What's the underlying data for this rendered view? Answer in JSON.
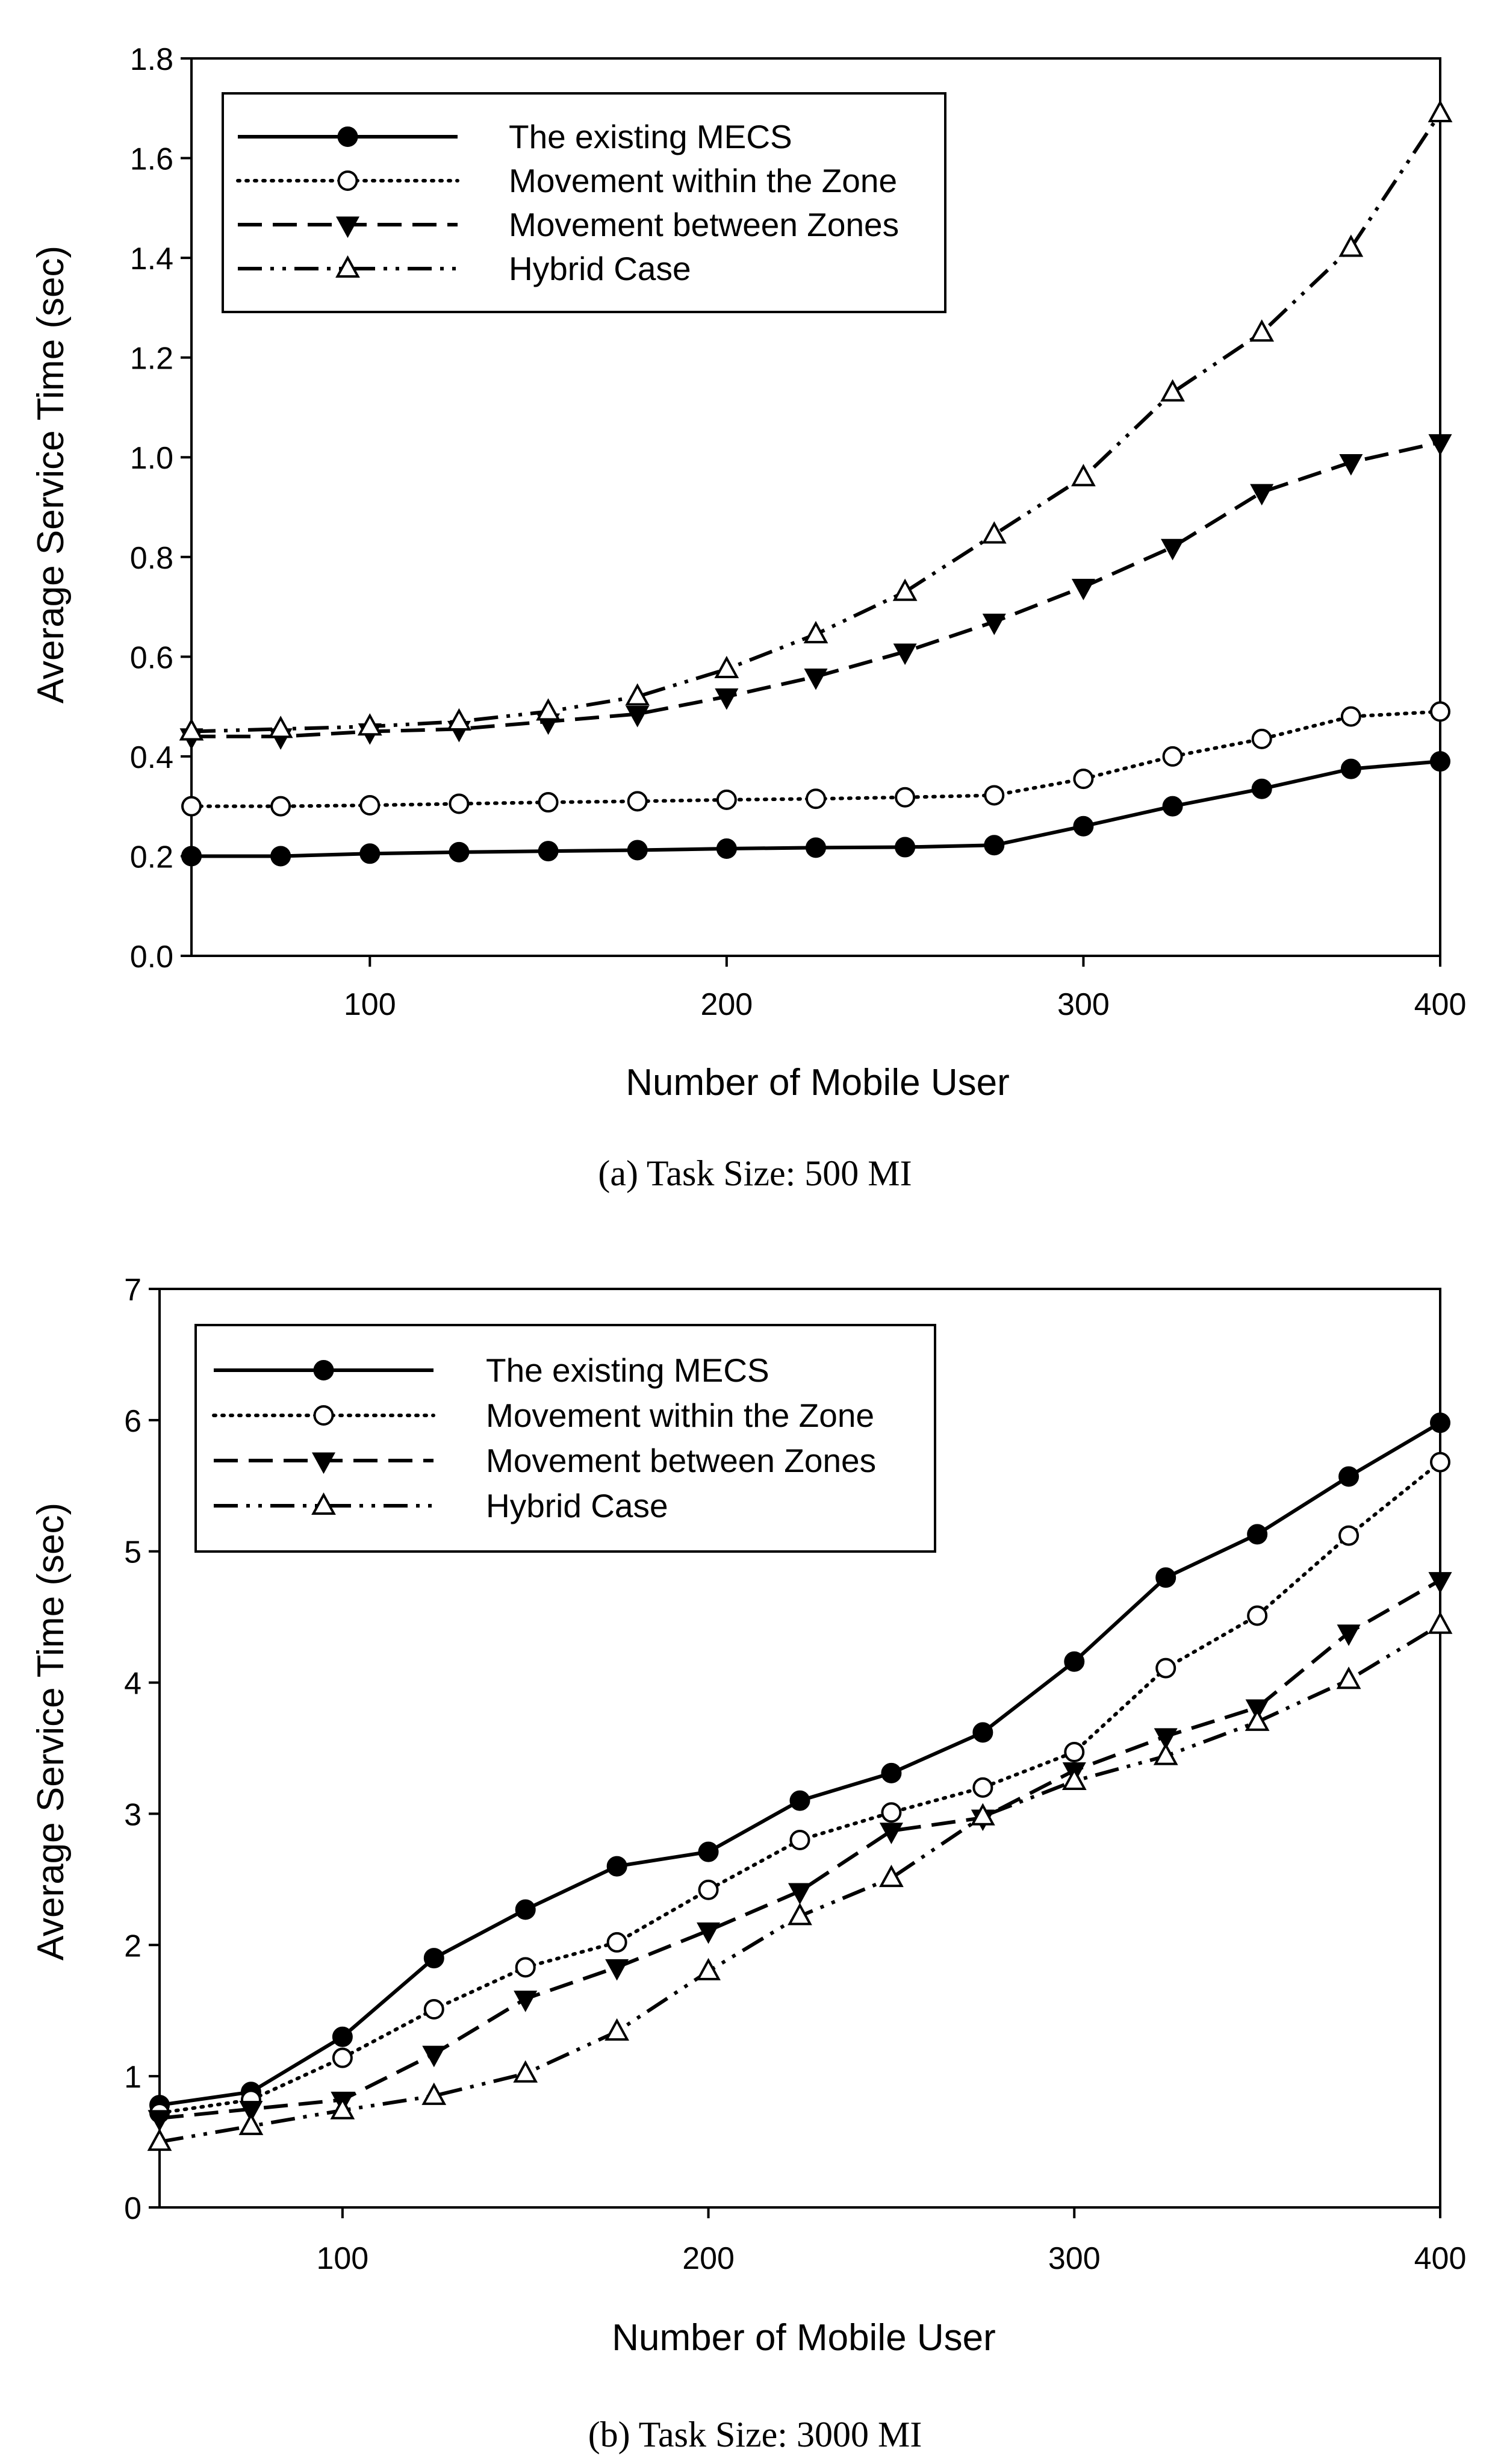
{
  "chart_data": [
    {
      "type": "line",
      "caption": "(a)  Task Size: 500 MI",
      "title": "",
      "xlabel": "Number of Mobile User",
      "ylabel": "Average Service Time (sec)",
      "xlim": [
        50,
        400
      ],
      "ylim": [
        0.0,
        1.8
      ],
      "xticks": [
        100,
        200,
        300,
        400
      ],
      "xtick_labels": [
        "100",
        "200",
        "300",
        "400"
      ],
      "yticks": [
        0.0,
        0.2,
        0.4,
        0.6,
        0.8,
        1.0,
        1.2,
        1.4,
        1.6,
        1.8
      ],
      "ytick_labels": [
        "0.0",
        "0.2",
        "0.4",
        "0.6",
        "0.8",
        "1.0",
        "1.2",
        "1.4",
        "1.6",
        "1.8"
      ],
      "legend_position": "top-left",
      "x": [
        50,
        75,
        100,
        125,
        150,
        175,
        200,
        225,
        250,
        275,
        300,
        325,
        350,
        375,
        400
      ],
      "series": [
        {
          "name": "The existing MECS",
          "style": "solid",
          "marker": "filled-circle",
          "color": "#000000",
          "values": [
            0.2,
            0.2,
            0.205,
            0.208,
            0.21,
            0.212,
            0.215,
            0.217,
            0.218,
            0.222,
            0.26,
            0.3,
            0.335,
            0.375,
            0.39
          ]
        },
        {
          "name": "Movement within the Zone",
          "style": "dotted",
          "marker": "open-circle",
          "color": "#000000",
          "values": [
            0.3,
            0.3,
            0.302,
            0.305,
            0.308,
            0.31,
            0.313,
            0.315,
            0.318,
            0.322,
            0.355,
            0.4,
            0.435,
            0.48,
            0.49
          ]
        },
        {
          "name": "Movement between Zones",
          "style": "dashed",
          "marker": "filled-triangle-down",
          "color": "#000000",
          "values": [
            0.44,
            0.44,
            0.45,
            0.455,
            0.47,
            0.485,
            0.52,
            0.56,
            0.61,
            0.67,
            0.74,
            0.82,
            0.93,
            0.99,
            1.03
          ]
        },
        {
          "name": "Hybrid Case",
          "style": "dash-dot-dot",
          "marker": "open-triangle-up",
          "color": "#000000",
          "values": [
            0.45,
            0.455,
            0.46,
            0.47,
            0.49,
            0.52,
            0.575,
            0.645,
            0.73,
            0.845,
            0.96,
            1.13,
            1.25,
            1.42,
            1.69
          ]
        }
      ]
    },
    {
      "type": "line",
      "caption": "(b)  Task Size: 3000 MI",
      "title": "",
      "xlabel": "Number of Mobile User",
      "ylabel": "Average Service Time (sec)",
      "xlim": [
        50,
        400
      ],
      "ylim": [
        0,
        7
      ],
      "xticks": [
        100,
        200,
        300,
        400
      ],
      "xtick_labels": [
        "100",
        "200",
        "300",
        "400"
      ],
      "yticks": [
        0,
        1,
        2,
        3,
        4,
        5,
        6,
        7
      ],
      "ytick_labels": [
        "0",
        "1",
        "2",
        "3",
        "4",
        "5",
        "6",
        "7"
      ],
      "legend_position": "top-left",
      "x": [
        50,
        75,
        100,
        125,
        150,
        175,
        200,
        225,
        250,
        275,
        300,
        325,
        350,
        375,
        400
      ],
      "series": [
        {
          "name": "The existing MECS",
          "style": "solid",
          "marker": "filled-circle",
          "color": "#000000",
          "values": [
            0.78,
            0.88,
            1.3,
            1.9,
            2.27,
            2.6,
            2.71,
            3.1,
            3.31,
            3.62,
            4.16,
            4.8,
            5.13,
            5.57,
            5.98
          ]
        },
        {
          "name": "Movement within the Zone",
          "style": "dotted",
          "marker": "open-circle",
          "color": "#000000",
          "values": [
            0.72,
            0.82,
            1.14,
            1.51,
            1.83,
            2.02,
            2.42,
            2.8,
            3.01,
            3.2,
            3.47,
            4.11,
            4.51,
            5.12,
            5.68
          ]
        },
        {
          "name": "Movement between Zones",
          "style": "dashed",
          "marker": "filled-triangle-down",
          "color": "#000000",
          "values": [
            0.68,
            0.75,
            0.82,
            1.17,
            1.59,
            1.83,
            2.11,
            2.41,
            2.87,
            2.97,
            3.33,
            3.59,
            3.81,
            4.38,
            4.78
          ]
        },
        {
          "name": "Hybrid Case",
          "style": "dash-dot-dot",
          "marker": "open-triangle-up",
          "color": "#000000",
          "values": [
            0.5,
            0.62,
            0.74,
            0.85,
            1.02,
            1.34,
            1.8,
            2.22,
            2.51,
            2.98,
            3.25,
            3.44,
            3.7,
            4.02,
            4.44
          ]
        }
      ]
    }
  ]
}
